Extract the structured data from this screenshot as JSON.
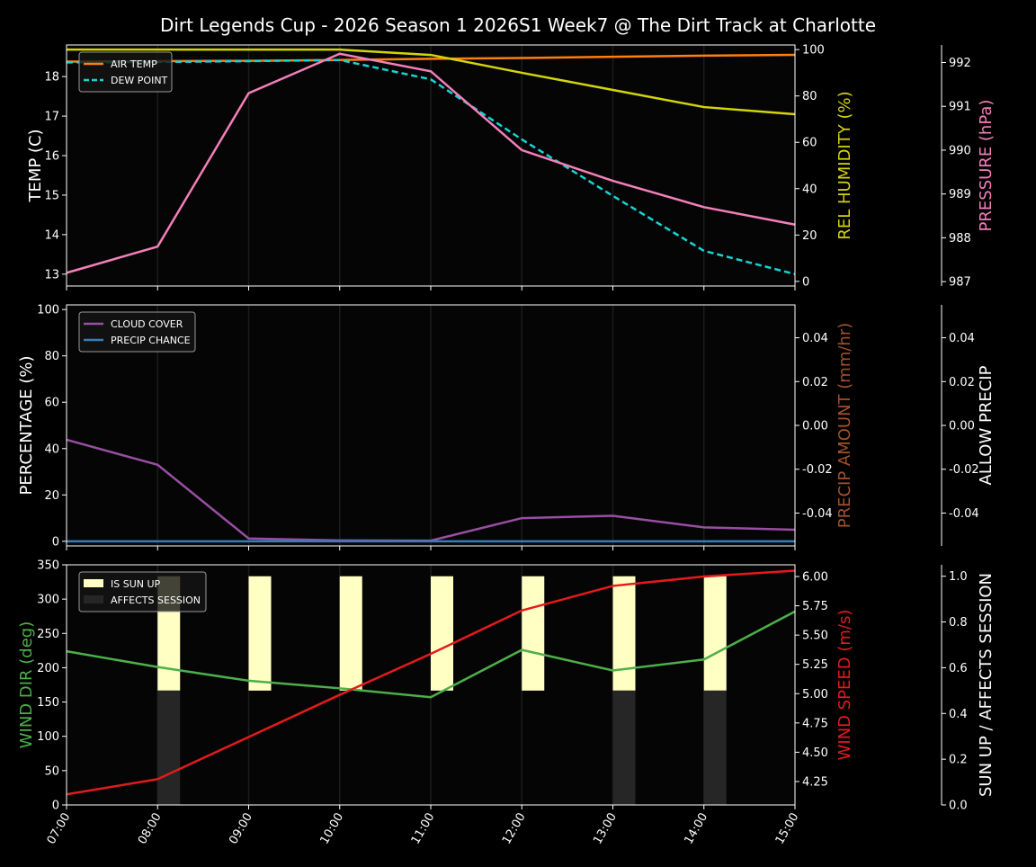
{
  "title": "Dirt Legends Cup - 2026 Season 1 2026S1 Week7 @ The Dirt Track at Charlotte",
  "colors": {
    "background": "#000000",
    "air_temp": "#ff7f0e",
    "dew_point": "#17d4d4",
    "humidity": "#d4d40a",
    "pressure": "#f47fba",
    "cloud_cover": "#984ea3",
    "precip_chance": "#377eb8",
    "precip_amount_label": "#a0522d",
    "wind_dir": "#4daf4a",
    "wind_speed": "#e41a1c",
    "sun_up": "#ffffc4",
    "affects_session": "#262626"
  },
  "chart_data": [
    {
      "type": "line",
      "x": [
        "07:00",
        "08:00",
        "09:00",
        "10:00",
        "11:00",
        "12:00",
        "13:00",
        "14:00",
        "15:00"
      ],
      "left_axis": {
        "label": "TEMP (C)",
        "ylim": [
          12.7,
          18.8
        ],
        "ticks": [
          13,
          14,
          15,
          16,
          17,
          18
        ]
      },
      "right_axis": {
        "label": "REL HUMIDITY (%)",
        "ylim": [
          -2,
          102
        ],
        "ticks": [
          0,
          20,
          40,
          60,
          80,
          100
        ]
      },
      "third_axis": {
        "label": "PRESSURE (hPa)",
        "ylim": [
          986.9,
          992.4
        ],
        "ticks": [
          987,
          988,
          989,
          990,
          991,
          992
        ]
      },
      "legend": "top-left",
      "grid": "vertical",
      "series": [
        {
          "name": "AIR TEMP",
          "axis": "left",
          "style": "solid",
          "color_key": "air_temp",
          "values": [
            18.38,
            18.39,
            18.4,
            18.42,
            18.45,
            18.47,
            18.5,
            18.53,
            18.55
          ]
        },
        {
          "name": "DEW POINT",
          "axis": "left",
          "style": "dashed",
          "color_key": "dew_point",
          "values": [
            18.36,
            18.37,
            18.39,
            18.42,
            17.93,
            16.41,
            14.98,
            13.59,
            13.0
          ]
        },
        {
          "axis": "right",
          "style": "solid",
          "color_key": "humidity",
          "values": [
            100,
            100,
            100,
            100,
            97.7,
            90,
            82.6,
            75.2,
            72.1
          ]
        },
        {
          "axis": "third",
          "style": "solid",
          "color_key": "pressure",
          "values": [
            987.2,
            987.8,
            991.3,
            992.2,
            991.8,
            990.0,
            989.3,
            988.7,
            988.3
          ]
        }
      ]
    },
    {
      "type": "line",
      "x": [
        "07:00",
        "08:00",
        "09:00",
        "10:00",
        "11:00",
        "12:00",
        "13:00",
        "14:00",
        "15:00"
      ],
      "left_axis": {
        "label": "PERCENTAGE (%)",
        "ylim": [
          -2,
          102
        ],
        "ticks": [
          0,
          20,
          40,
          60,
          80,
          100
        ]
      },
      "right_axis": {
        "label": "PRECIP AMOUNT (mm/hr)",
        "ylim": [
          -0.055,
          0.055
        ],
        "ticks": [
          -0.04,
          -0.02,
          0.0,
          0.02,
          0.04
        ]
      },
      "third_axis": {
        "label": "ALLOW PRECIP",
        "ylim": [
          -0.055,
          0.055
        ],
        "ticks": [
          -0.04,
          -0.02,
          0.0,
          0.02,
          0.04
        ]
      },
      "legend": "top-left",
      "grid": "vertical",
      "series": [
        {
          "name": "CLOUD COVER",
          "axis": "left",
          "style": "solid",
          "color_key": "cloud_cover",
          "values": [
            43.8,
            33,
            1.2,
            0.4,
            0.3,
            10,
            11,
            6,
            5
          ]
        },
        {
          "name": "PRECIP CHANCE",
          "axis": "left",
          "style": "solid",
          "color_key": "precip_chance",
          "values": [
            0,
            0,
            0,
            0,
            0,
            0,
            0,
            0,
            0
          ]
        }
      ]
    },
    {
      "type": "line",
      "x": [
        "07:00",
        "08:00",
        "09:00",
        "10:00",
        "11:00",
        "12:00",
        "13:00",
        "14:00",
        "15:00"
      ],
      "left_axis": {
        "label": "WIND DIR (deg)",
        "ylim": [
          0,
          350
        ],
        "ticks": [
          0,
          50,
          100,
          150,
          200,
          250,
          300,
          350
        ]
      },
      "right_axis": {
        "label": "WIND SPEED (m/s)",
        "ylim": [
          4.05,
          6.1
        ],
        "ticks": [
          4.25,
          4.5,
          4.75,
          5.0,
          5.25,
          5.5,
          5.75,
          6.0
        ]
      },
      "third_axis": {
        "label": "SUN UP / AFFECTS SESSION",
        "ylim": [
          0,
          1.05
        ],
        "ticks": [
          0.0,
          0.2,
          0.4,
          0.6,
          0.8,
          1.0
        ]
      },
      "legend": "top-left",
      "grid": "vertical",
      "bars": [
        {
          "name": "IS SUN UP",
          "color_key": "sun_up",
          "x": [
            "08:00",
            "09:00",
            "10:00",
            "11:00",
            "12:00",
            "13:00",
            "14:00"
          ],
          "bottom": 0.5,
          "top": 1.0
        },
        {
          "name": "AFFECTS SESSION",
          "color_key": "affects_session",
          "x": [
            "08:00",
            "13:00",
            "14:00"
          ],
          "bottom": 0.0,
          "top": 0.5
        }
      ],
      "series": [
        {
          "axis": "left",
          "style": "solid",
          "color_key": "wind_dir",
          "values": [
            224,
            201,
            181,
            170,
            157,
            226,
            196,
            212,
            282
          ]
        },
        {
          "axis": "right",
          "style": "solid",
          "color_key": "wind_speed",
          "values": [
            4.14,
            4.27,
            4.63,
            4.99,
            5.34,
            5.71,
            5.92,
            6.0,
            6.05
          ]
        }
      ]
    }
  ]
}
